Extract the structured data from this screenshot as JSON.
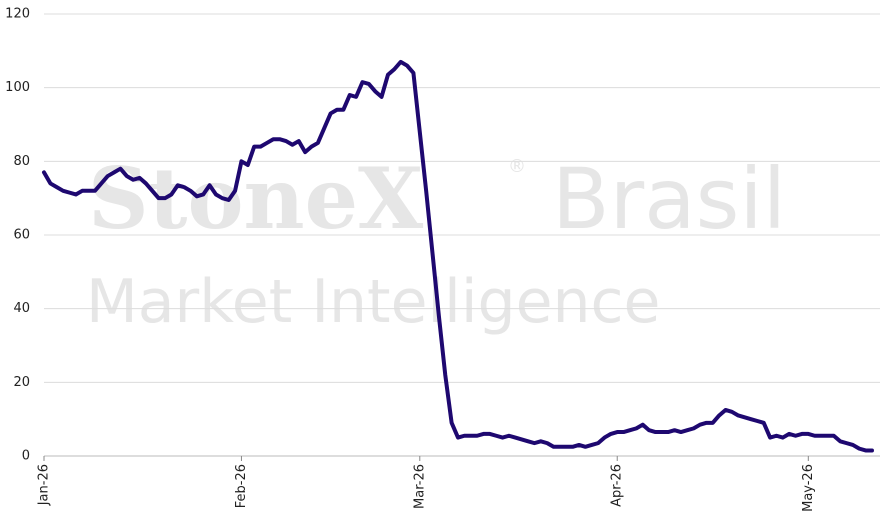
{
  "chart_data": {
    "type": "line",
    "watermark": [
      "StoneX",
      "®",
      "Brasil",
      "Market Intelligence"
    ],
    "categories": [
      "Jan-26",
      null,
      null,
      null,
      null,
      null,
      null,
      null,
      null,
      null,
      null,
      null,
      null,
      null,
      null,
      null,
      null,
      null,
      null,
      null,
      null,
      null,
      null,
      null,
      null,
      null,
      null,
      null,
      null,
      null,
      null,
      "Feb-26",
      null,
      null,
      null,
      null,
      null,
      null,
      null,
      null,
      null,
      null,
      null,
      null,
      null,
      null,
      null,
      null,
      null,
      null,
      null,
      null,
      null,
      null,
      null,
      null,
      null,
      null,
      null,
      "Mar-26",
      null,
      null,
      null,
      null,
      null,
      null,
      null,
      null,
      null,
      null,
      null,
      null,
      null,
      null,
      null,
      null,
      null,
      null,
      null,
      null,
      null,
      null,
      null,
      null,
      null,
      null,
      null,
      null,
      null,
      null,
      "Apr-26",
      null,
      null,
      null,
      null,
      null,
      null,
      null,
      null,
      null,
      null,
      null,
      null,
      null,
      null,
      null,
      null,
      null,
      null,
      null,
      null,
      null,
      null,
      null,
      null,
      null,
      null,
      null,
      null,
      null,
      "May-26",
      null,
      null,
      null,
      null,
      null,
      null,
      null,
      null,
      null,
      null
    ],
    "values": [
      77,
      74,
      73,
      72,
      71.5,
      71,
      72,
      72,
      72,
      74,
      76,
      77,
      78,
      76,
      75,
      75.5,
      74,
      72,
      70,
      70,
      71,
      73.5,
      73,
      72,
      70.5,
      71,
      73.5,
      71,
      70,
      69.5,
      72,
      80,
      79,
      84,
      84,
      85,
      86,
      86,
      85.5,
      84.5,
      85.5,
      82.5,
      84,
      85,
      89,
      93,
      94,
      94,
      98,
      97.5,
      101.5,
      101,
      99,
      97.5,
      103.5,
      105,
      107,
      106,
      104,
      88,
      72,
      55,
      38,
      22,
      9,
      5,
      5.5,
      5.5,
      5.5,
      6,
      6,
      5.5,
      5,
      5.5,
      5,
      4.5,
      4,
      3.5,
      4,
      3.5,
      2.5,
      2.5,
      2.5,
      2.5,
      3,
      2.5,
      3,
      3.5,
      5,
      6,
      6.5,
      6.5,
      7,
      7.5,
      8.5,
      7,
      6.5,
      6.5,
      6.5,
      7,
      6.5,
      7,
      7.5,
      8.5,
      9,
      9,
      11,
      12.5,
      12,
      11,
      10.5,
      10,
      9.5,
      9,
      5,
      5.5,
      5,
      6,
      5.5,
      6,
      6,
      5.5,
      5.5,
      5.5,
      5.5,
      4,
      3.5,
      3,
      2,
      1.5,
      1.5
    ],
    "color": "#1e0870",
    "ylim": [
      0,
      120
    ],
    "yticks": [
      0,
      20,
      40,
      60,
      80,
      100,
      120
    ],
    "grid": true
  }
}
